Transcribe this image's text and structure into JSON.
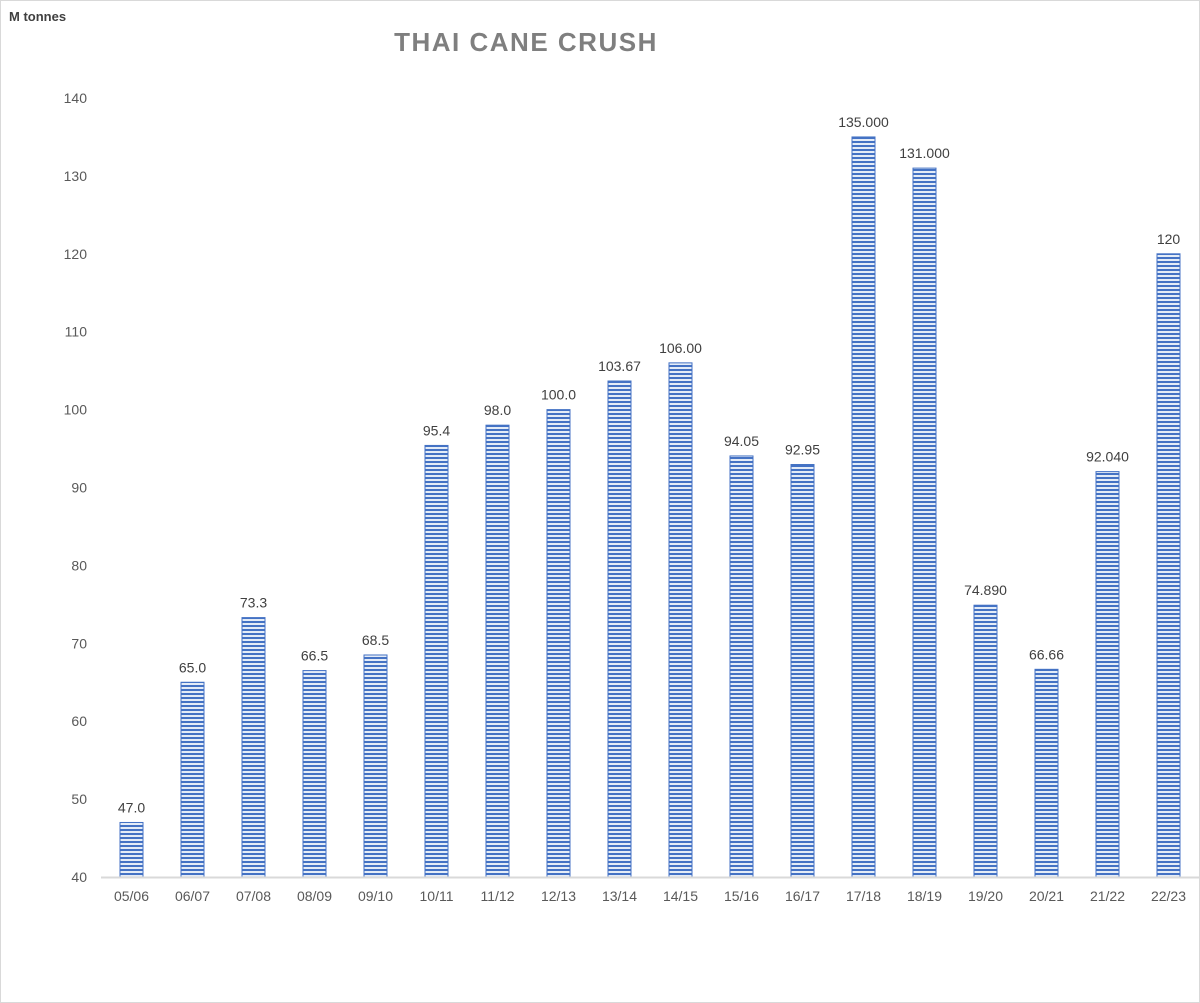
{
  "chart_data": {
    "type": "bar",
    "title": "THAI CANE CRUSH",
    "unit_label": "M tonnes",
    "xlabel": "",
    "ylabel": "",
    "ylim": [
      40,
      140
    ],
    "yticks": [
      40,
      50,
      60,
      70,
      80,
      90,
      100,
      110,
      120,
      130,
      140
    ],
    "grid": false,
    "legend": "none",
    "bar_color": "#4472c4",
    "categories": [
      "05/06",
      "06/07",
      "07/08",
      "08/09",
      "09/10",
      "10/11",
      "11/12",
      "12/13",
      "13/14",
      "14/15",
      "15/16",
      "16/17",
      "17/18",
      "18/19",
      "19/20",
      "20/21",
      "21/22",
      "22/23"
    ],
    "values": [
      47.0,
      65.0,
      73.3,
      66.5,
      68.5,
      95.4,
      98.0,
      100.0,
      103.67,
      106.0,
      94.05,
      92.95,
      135.0,
      131.0,
      74.89,
      66.66,
      92.04,
      120
    ],
    "value_labels": [
      "47.0",
      "65.0",
      "73.3",
      "66.5",
      "68.5",
      "95.4",
      "98.0",
      "100.0",
      "103.67",
      "106.00",
      "94.05",
      "92.95",
      "135.000",
      "131.000",
      "74.890",
      "66.66",
      "92.040",
      "120"
    ]
  }
}
